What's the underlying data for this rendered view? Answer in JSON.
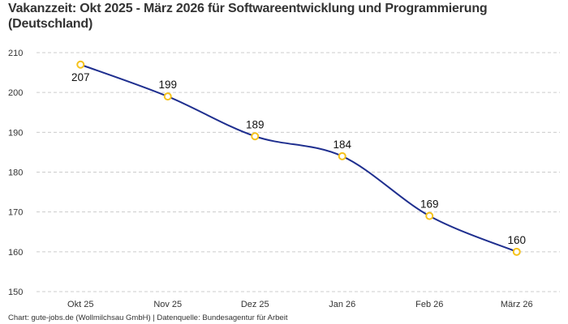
{
  "chart_data": {
    "type": "line",
    "title": "Vakanzzeit: Okt 2025 - März 2026 für Softwareentwicklung und Programmierung (Deutschland)",
    "categories": [
      "Okt 25",
      "Nov 25",
      "Dez 25",
      "Jan 26",
      "Feb 26",
      "März 26"
    ],
    "series": [
      {
        "values": [
          207,
          199,
          189,
          184,
          169,
          160
        ]
      }
    ],
    "data_labels": [
      "207",
      "199",
      "189",
      "184",
      "169",
      "160"
    ],
    "xlabel": "",
    "ylabel": "",
    "ylim": [
      150,
      210
    ],
    "yticks": [
      150,
      160,
      170,
      180,
      190,
      200,
      210
    ],
    "grid": "horizontal dashed",
    "line_color": "#1f2f8f",
    "marker_color": "#f5c21b",
    "smooth": true
  },
  "footer": "Chart: gute-jobs.de (Wollmilchsau GmbH) | Datenquelle: Bundesagentur für Arbeit"
}
